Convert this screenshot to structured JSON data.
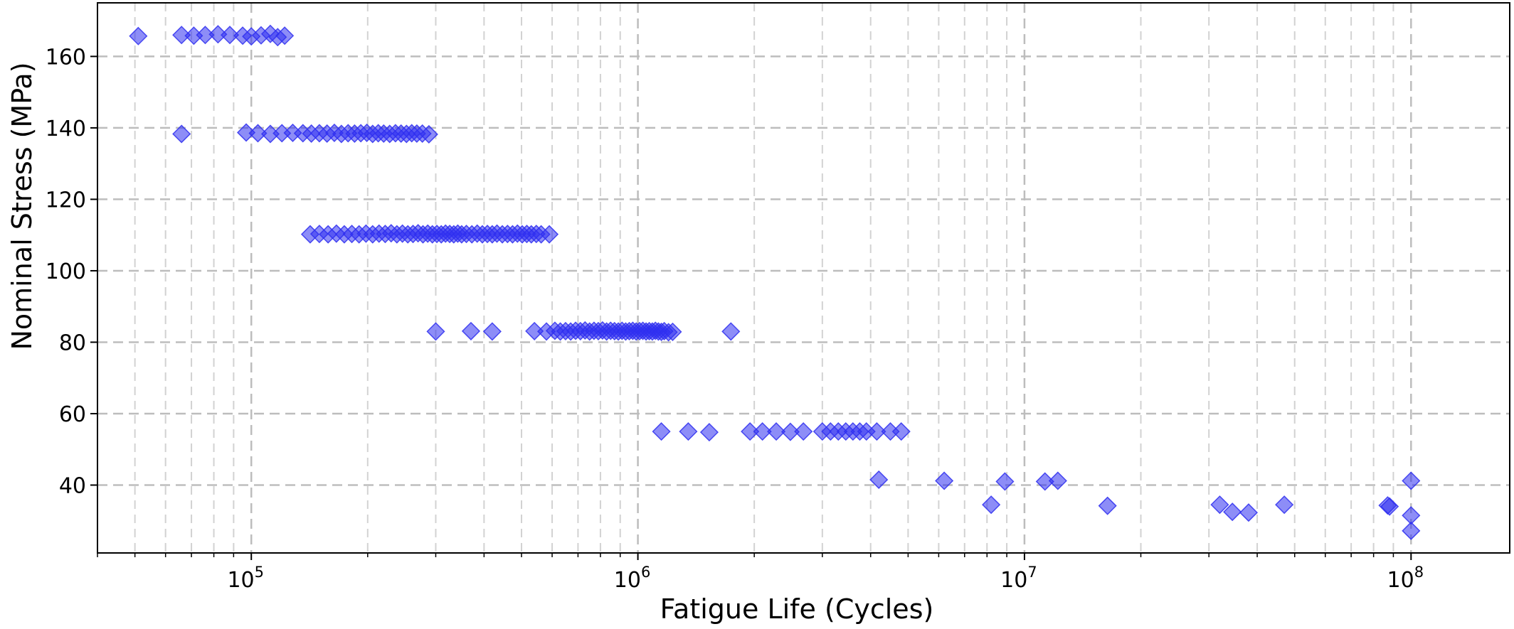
{
  "chart_data": {
    "type": "scatter",
    "title": "",
    "xlabel": "Fatigue Life (Cycles)",
    "ylabel": "Nominal Stress (MPa)",
    "x_scale": "log",
    "xlim": [
      40000,
      180000000
    ],
    "ylim": [
      21,
      175
    ],
    "x_ticks": [
      {
        "value": 100000,
        "base": "10",
        "exp": "5"
      },
      {
        "value": 1000000,
        "base": "10",
        "exp": "6"
      },
      {
        "value": 10000000,
        "base": "10",
        "exp": "7"
      },
      {
        "value": 100000000,
        "base": "10",
        "exp": "8"
      }
    ],
    "y_ticks": [
      40,
      60,
      80,
      100,
      120,
      140,
      160
    ],
    "grid": true,
    "grid_style": "dashed",
    "marker": "diamond",
    "marker_color": "#2f2ff0",
    "marker_alpha": 0.55,
    "series": [
      {
        "points": [
          [
            51000,
            165.7
          ],
          [
            66000,
            166
          ],
          [
            71000,
            165.8
          ],
          [
            76000,
            166
          ],
          [
            82000,
            166.2
          ],
          [
            88000,
            166
          ],
          [
            95000,
            165.8
          ],
          [
            100000,
            165.6
          ],
          [
            106000,
            165.9
          ],
          [
            112000,
            166.3
          ],
          [
            117000,
            165.4
          ],
          [
            122000,
            165.8
          ],
          [
            66000,
            138.3
          ],
          [
            97000,
            138.7
          ],
          [
            104000,
            138.5
          ],
          [
            112000,
            138.3
          ],
          [
            120000,
            138.5
          ],
          [
            128000,
            138.6
          ],
          [
            136000,
            138.5
          ],
          [
            143000,
            138.4
          ],
          [
            150000,
            138.5
          ],
          [
            157000,
            138.4
          ],
          [
            164000,
            138.6
          ],
          [
            171000,
            138.3
          ],
          [
            178000,
            138.5
          ],
          [
            185000,
            138.4
          ],
          [
            192000,
            138.5
          ],
          [
            199000,
            138.6
          ],
          [
            206000,
            138.3
          ],
          [
            213000,
            138.5
          ],
          [
            220000,
            138.4
          ],
          [
            228000,
            138.3
          ],
          [
            236000,
            138.5
          ],
          [
            244000,
            138.4
          ],
          [
            252000,
            138.3
          ],
          [
            260000,
            138.5
          ],
          [
            268000,
            138.4
          ],
          [
            277000,
            138.4
          ],
          [
            288000,
            138.2
          ],
          [
            142000,
            110.2
          ],
          [
            150000,
            110.3
          ],
          [
            158000,
            110.2
          ],
          [
            166000,
            110.4
          ],
          [
            174000,
            110.2
          ],
          [
            182000,
            110.3
          ],
          [
            190000,
            110.2
          ],
          [
            198000,
            110.4
          ],
          [
            206000,
            110.2
          ],
          [
            214000,
            110.4
          ],
          [
            222000,
            110.3
          ],
          [
            230000,
            110.5
          ],
          [
            238000,
            110.2
          ],
          [
            246000,
            110.4
          ],
          [
            254000,
            110.2
          ],
          [
            262000,
            110.3
          ],
          [
            270000,
            110.5
          ],
          [
            278000,
            110.2
          ],
          [
            286000,
            110.4
          ],
          [
            294000,
            110.2
          ],
          [
            302000,
            110.3
          ],
          [
            310000,
            110.2
          ],
          [
            318000,
            110.4
          ],
          [
            326000,
            110.3
          ],
          [
            334000,
            110.2
          ],
          [
            342000,
            110.4
          ],
          [
            350000,
            110.2
          ],
          [
            360000,
            110.3
          ],
          [
            372000,
            110.2
          ],
          [
            384000,
            110.4
          ],
          [
            396000,
            110.2
          ],
          [
            408000,
            110.3
          ],
          [
            420000,
            110.2
          ],
          [
            432000,
            110.4
          ],
          [
            446000,
            110.2
          ],
          [
            460000,
            110.3
          ],
          [
            474000,
            110.2
          ],
          [
            488000,
            110.4
          ],
          [
            502000,
            110.2
          ],
          [
            516000,
            110.3
          ],
          [
            530000,
            110.2
          ],
          [
            546000,
            110.3
          ],
          [
            562000,
            110.2
          ],
          [
            590000,
            110.2
          ],
          [
            300000,
            83
          ],
          [
            370000,
            83.1
          ],
          [
            420000,
            83
          ],
          [
            540000,
            83.1
          ],
          [
            580000,
            83
          ],
          [
            610000,
            83.2
          ],
          [
            630000,
            83
          ],
          [
            650000,
            83.1
          ],
          [
            670000,
            83
          ],
          [
            690000,
            83.2
          ],
          [
            710000,
            83.1
          ],
          [
            730000,
            83.3
          ],
          [
            750000,
            83
          ],
          [
            770000,
            83.2
          ],
          [
            790000,
            83.1
          ],
          [
            810000,
            83.3
          ],
          [
            830000,
            83
          ],
          [
            850000,
            83.2
          ],
          [
            870000,
            83.1
          ],
          [
            890000,
            83
          ],
          [
            910000,
            83.2
          ],
          [
            930000,
            83
          ],
          [
            950000,
            83.1
          ],
          [
            970000,
            83.2
          ],
          [
            990000,
            83
          ],
          [
            1010000,
            83.1
          ],
          [
            1030000,
            83.2
          ],
          [
            1050000,
            83
          ],
          [
            1070000,
            83.1
          ],
          [
            1090000,
            83
          ],
          [
            1110000,
            83.2
          ],
          [
            1130000,
            83
          ],
          [
            1150000,
            82.9
          ],
          [
            1170000,
            83.1
          ],
          [
            1200000,
            82.8
          ],
          [
            1230000,
            82.9
          ],
          [
            1740000,
            83
          ],
          [
            1150000,
            55
          ],
          [
            1350000,
            55
          ],
          [
            1530000,
            54.8
          ],
          [
            1950000,
            55
          ],
          [
            2100000,
            55
          ],
          [
            2280000,
            55
          ],
          [
            2480000,
            54.9
          ],
          [
            2680000,
            55
          ],
          [
            3000000,
            55
          ],
          [
            3150000,
            55
          ],
          [
            3300000,
            55
          ],
          [
            3450000,
            55
          ],
          [
            3600000,
            55
          ],
          [
            3750000,
            55
          ],
          [
            3900000,
            55
          ],
          [
            4150000,
            55
          ],
          [
            4500000,
            55
          ],
          [
            4800000,
            55
          ],
          [
            4200000,
            41.5
          ],
          [
            6200000,
            41.2
          ],
          [
            8900000,
            41
          ],
          [
            11300000,
            41
          ],
          [
            12200000,
            41.2
          ],
          [
            8200000,
            34.5
          ],
          [
            16400000,
            34.2
          ],
          [
            32000000,
            34.5
          ],
          [
            34500000,
            32.5
          ],
          [
            38000000,
            32.3
          ],
          [
            47000000,
            34.5
          ],
          [
            87000000,
            34.3
          ],
          [
            88000000,
            34
          ],
          [
            100000000,
            41.2
          ],
          [
            100000000,
            31.5
          ],
          [
            100000000,
            27.2
          ]
        ]
      }
    ]
  }
}
